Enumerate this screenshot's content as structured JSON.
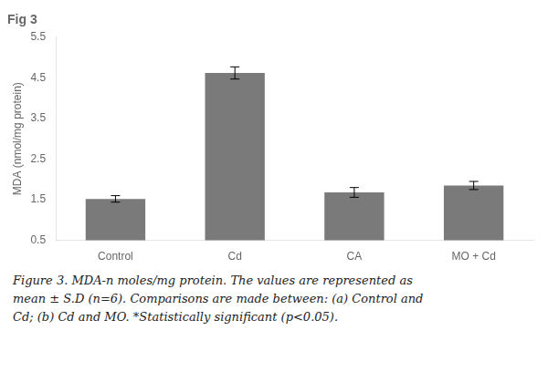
{
  "chart_data": {
    "type": "bar",
    "title": "Fig 3",
    "categories": [
      "Control",
      "Cd",
      "CA",
      "MO + Cd"
    ],
    "values": [
      1.52,
      4.62,
      1.68,
      1.85
    ],
    "errors": [
      0.08,
      0.15,
      0.12,
      0.1
    ],
    "color": "#7a7a7a",
    "ylabel": "MDA (nmol/mg protein)",
    "ylim": [
      0.5,
      5.5
    ],
    "yticks": [
      0.5,
      1.5,
      2.5,
      3.5,
      4.5,
      5.5
    ],
    "grid": false,
    "caption": [
      "Figure 3. MDA-n moles/mg protein.  The values are represented as",
      "mean ± S.D (n=6). Comparisons are made between: (a) Control and",
      "Cd; (b) Cd and MO. *Statistically significant (p<0.05)."
    ]
  }
}
